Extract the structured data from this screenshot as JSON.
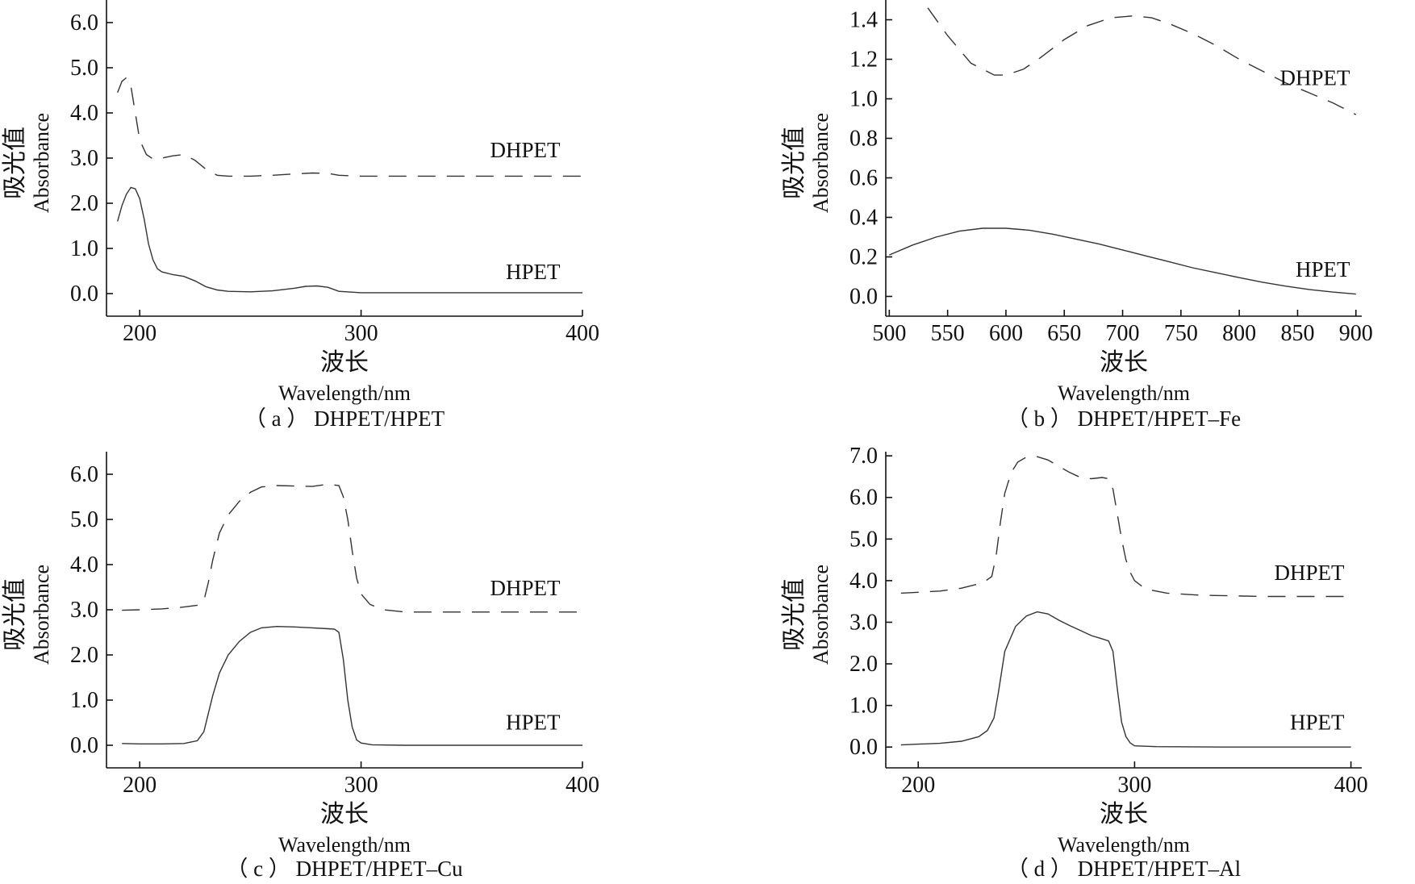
{
  "colors": {
    "axis": "#111111",
    "series": "#333333",
    "background": "#ffffff"
  },
  "chart_data": [
    {
      "panel": "a",
      "type": "line",
      "caption": "（ a ） DHPET/HPET",
      "ylabel_cn": "吸光值",
      "ylabel_en": "Absorbance",
      "xlabel_cn": "波长",
      "xlabel_en": "Wavelength/nm",
      "xlim": [
        185,
        400
      ],
      "ylim": [
        -0.5,
        6.5
      ],
      "xticks": [
        200,
        300,
        400
      ],
      "yticks": [
        0,
        1,
        2,
        3,
        4,
        5,
        6
      ],
      "ytick_decimals": 1,
      "xtick_decimals": 0,
      "grid": false,
      "legend": "inline labels at right",
      "series": [
        {
          "name": "DHPET",
          "style": "dashed",
          "x": [
            190,
            192,
            194,
            196,
            198,
            200,
            203,
            206,
            210,
            215,
            220,
            225,
            230,
            235,
            240,
            250,
            260,
            270,
            278,
            285,
            290,
            300,
            320,
            350,
            380,
            400
          ],
          "y": [
            4.45,
            4.7,
            4.78,
            4.6,
            4.0,
            3.4,
            3.08,
            2.98,
            3.0,
            3.05,
            3.08,
            2.95,
            2.75,
            2.62,
            2.6,
            2.6,
            2.62,
            2.65,
            2.67,
            2.66,
            2.62,
            2.6,
            2.6,
            2.6,
            2.6,
            2.6
          ],
          "label": "DHPET",
          "label_at": [
            390,
            3.02
          ]
        },
        {
          "name": "HPET",
          "style": "solid",
          "x": [
            190,
            192,
            194,
            196,
            198,
            200,
            202,
            204,
            206,
            208,
            210,
            215,
            220,
            225,
            230,
            235,
            240,
            250,
            260,
            270,
            275,
            280,
            285,
            290,
            300,
            320,
            350,
            380,
            400
          ],
          "y": [
            1.6,
            1.95,
            2.2,
            2.35,
            2.32,
            2.1,
            1.65,
            1.1,
            0.75,
            0.55,
            0.48,
            0.42,
            0.38,
            0.28,
            0.15,
            0.08,
            0.05,
            0.04,
            0.06,
            0.12,
            0.16,
            0.17,
            0.14,
            0.05,
            0.02,
            0.02,
            0.02,
            0.02,
            0.02
          ],
          "label": "HPET",
          "label_at": [
            390,
            0.32
          ]
        }
      ]
    },
    {
      "panel": "b",
      "type": "line",
      "caption": "（ b ） DHPET/HPET–Fe",
      "ylabel_cn": "吸光值",
      "ylabel_en": "Absorbance",
      "xlabel_cn": "波长",
      "xlabel_en": "Wavelength/nm",
      "xlim": [
        497,
        905
      ],
      "ylim": [
        -0.1,
        1.5
      ],
      "xticks": [
        500,
        550,
        600,
        650,
        700,
        750,
        800,
        850,
        900
      ],
      "yticks": [
        0,
        0.2,
        0.4,
        0.6,
        0.8,
        1.0,
        1.2,
        1.4
      ],
      "ytick_decimals": 1,
      "xtick_decimals": 0,
      "grid": false,
      "legend": "inline labels at right",
      "series": [
        {
          "name": "DHPET",
          "style": "dashed",
          "x": [
            533,
            550,
            570,
            590,
            600,
            615,
            630,
            650,
            670,
            690,
            710,
            725,
            740,
            760,
            780,
            800,
            820,
            840,
            860,
            880,
            900
          ],
          "y": [
            1.46,
            1.32,
            1.18,
            1.12,
            1.12,
            1.15,
            1.21,
            1.3,
            1.37,
            1.41,
            1.42,
            1.41,
            1.38,
            1.33,
            1.27,
            1.2,
            1.14,
            1.08,
            1.03,
            0.98,
            0.92
          ],
          "label": "DHPET",
          "label_at": [
            895,
            1.07
          ]
        },
        {
          "name": "HPET",
          "style": "solid",
          "x": [
            500,
            520,
            540,
            560,
            580,
            600,
            620,
            640,
            660,
            680,
            700,
            720,
            740,
            760,
            780,
            800,
            820,
            840,
            860,
            880,
            900
          ],
          "y": [
            0.21,
            0.26,
            0.3,
            0.33,
            0.345,
            0.345,
            0.335,
            0.315,
            0.29,
            0.265,
            0.235,
            0.205,
            0.175,
            0.145,
            0.12,
            0.095,
            0.072,
            0.052,
            0.035,
            0.022,
            0.012
          ],
          "label": "HPET",
          "label_at": [
            895,
            0.1
          ]
        }
      ]
    },
    {
      "panel": "c",
      "type": "line",
      "caption": "（ c ） DHPET/HPET–Cu",
      "ylabel_cn": "吸光值",
      "ylabel_en": "Absorbance",
      "xlabel_cn": "波长",
      "xlabel_en": "Wavelength/nm",
      "xlim": [
        185,
        400
      ],
      "ylim": [
        -0.5,
        6.5
      ],
      "xticks": [
        200,
        300,
        400
      ],
      "yticks": [
        0,
        1,
        2,
        3,
        4,
        5,
        6
      ],
      "ytick_decimals": 1,
      "xtick_decimals": 0,
      "grid": false,
      "legend": "inline labels at right",
      "series": [
        {
          "name": "DHPET",
          "style": "dashed",
          "x": [
            192,
            200,
            210,
            220,
            226,
            229,
            231,
            233,
            236,
            240,
            245,
            250,
            255,
            262,
            270,
            278,
            285,
            290,
            292,
            294,
            296,
            298,
            300,
            304,
            310,
            320,
            340,
            370,
            400
          ],
          "y": [
            2.99,
            3.0,
            3.02,
            3.06,
            3.1,
            3.2,
            3.6,
            4.1,
            4.7,
            5.1,
            5.4,
            5.6,
            5.72,
            5.75,
            5.74,
            5.73,
            5.78,
            5.75,
            5.5,
            5.0,
            4.3,
            3.7,
            3.35,
            3.12,
            3.0,
            2.95,
            2.95,
            2.95,
            2.95
          ],
          "label": "DHPET",
          "label_at": [
            390,
            3.32
          ]
        },
        {
          "name": "HPET",
          "style": "solid",
          "x": [
            192,
            200,
            210,
            220,
            226,
            229,
            231,
            233,
            236,
            240,
            245,
            250,
            255,
            262,
            270,
            278,
            285,
            288,
            290,
            292,
            294,
            296,
            298,
            300,
            305,
            320,
            350,
            400
          ],
          "y": [
            0.04,
            0.03,
            0.03,
            0.04,
            0.1,
            0.3,
            0.7,
            1.1,
            1.6,
            2.0,
            2.3,
            2.5,
            2.6,
            2.63,
            2.62,
            2.6,
            2.58,
            2.57,
            2.5,
            1.9,
            1.0,
            0.4,
            0.12,
            0.05,
            0.01,
            0.0,
            0.0,
            0.0
          ],
          "label": "HPET",
          "label_at": [
            390,
            0.35
          ]
        }
      ]
    },
    {
      "panel": "d",
      "type": "line",
      "caption": "（ d ） DHPET/HPET–Al",
      "ylabel_cn": "吸光值",
      "ylabel_en": "Absorbance",
      "xlabel_cn": "波长",
      "xlabel_en": "Wavelength/nm",
      "xlim": [
        185,
        405
      ],
      "ylim": [
        -0.5,
        7.1
      ],
      "xticks": [
        200,
        300,
        400
      ],
      "yticks": [
        0,
        1,
        2,
        3,
        4,
        5,
        6,
        7
      ],
      "ytick_decimals": 1,
      "xtick_decimals": 0,
      "grid": false,
      "legend": "inline labels at right",
      "series": [
        {
          "name": "DHPET",
          "style": "dashed",
          "x": [
            192,
            200,
            210,
            220,
            230,
            234,
            236,
            238,
            240,
            243,
            246,
            250,
            255,
            260,
            265,
            270,
            275,
            280,
            285,
            288,
            290,
            292,
            294,
            296,
            298,
            300,
            305,
            315,
            330,
            360,
            400
          ],
          "y": [
            3.7,
            3.72,
            3.75,
            3.82,
            3.95,
            4.1,
            4.6,
            5.4,
            6.1,
            6.6,
            6.85,
            6.97,
            6.98,
            6.9,
            6.75,
            6.6,
            6.48,
            6.45,
            6.48,
            6.45,
            6.2,
            5.6,
            5.0,
            4.5,
            4.2,
            4.0,
            3.8,
            3.7,
            3.65,
            3.62,
            3.62
          ],
          "label": "DHPET",
          "label_at": [
            397,
            4.02
          ]
        },
        {
          "name": "HPET",
          "style": "solid",
          "x": [
            192,
            200,
            210,
            220,
            228,
            232,
            235,
            237,
            240,
            245,
            250,
            255,
            260,
            265,
            270,
            275,
            280,
            285,
            288,
            290,
            292,
            294,
            296,
            298,
            300,
            310,
            340,
            400
          ],
          "y": [
            0.05,
            0.07,
            0.09,
            0.14,
            0.25,
            0.4,
            0.7,
            1.3,
            2.3,
            2.9,
            3.15,
            3.25,
            3.2,
            3.05,
            2.92,
            2.8,
            2.68,
            2.6,
            2.55,
            2.3,
            1.4,
            0.6,
            0.25,
            0.1,
            0.03,
            0.01,
            0.0,
            0.0
          ],
          "label": "HPET",
          "label_at": [
            397,
            0.42
          ]
        }
      ]
    }
  ]
}
